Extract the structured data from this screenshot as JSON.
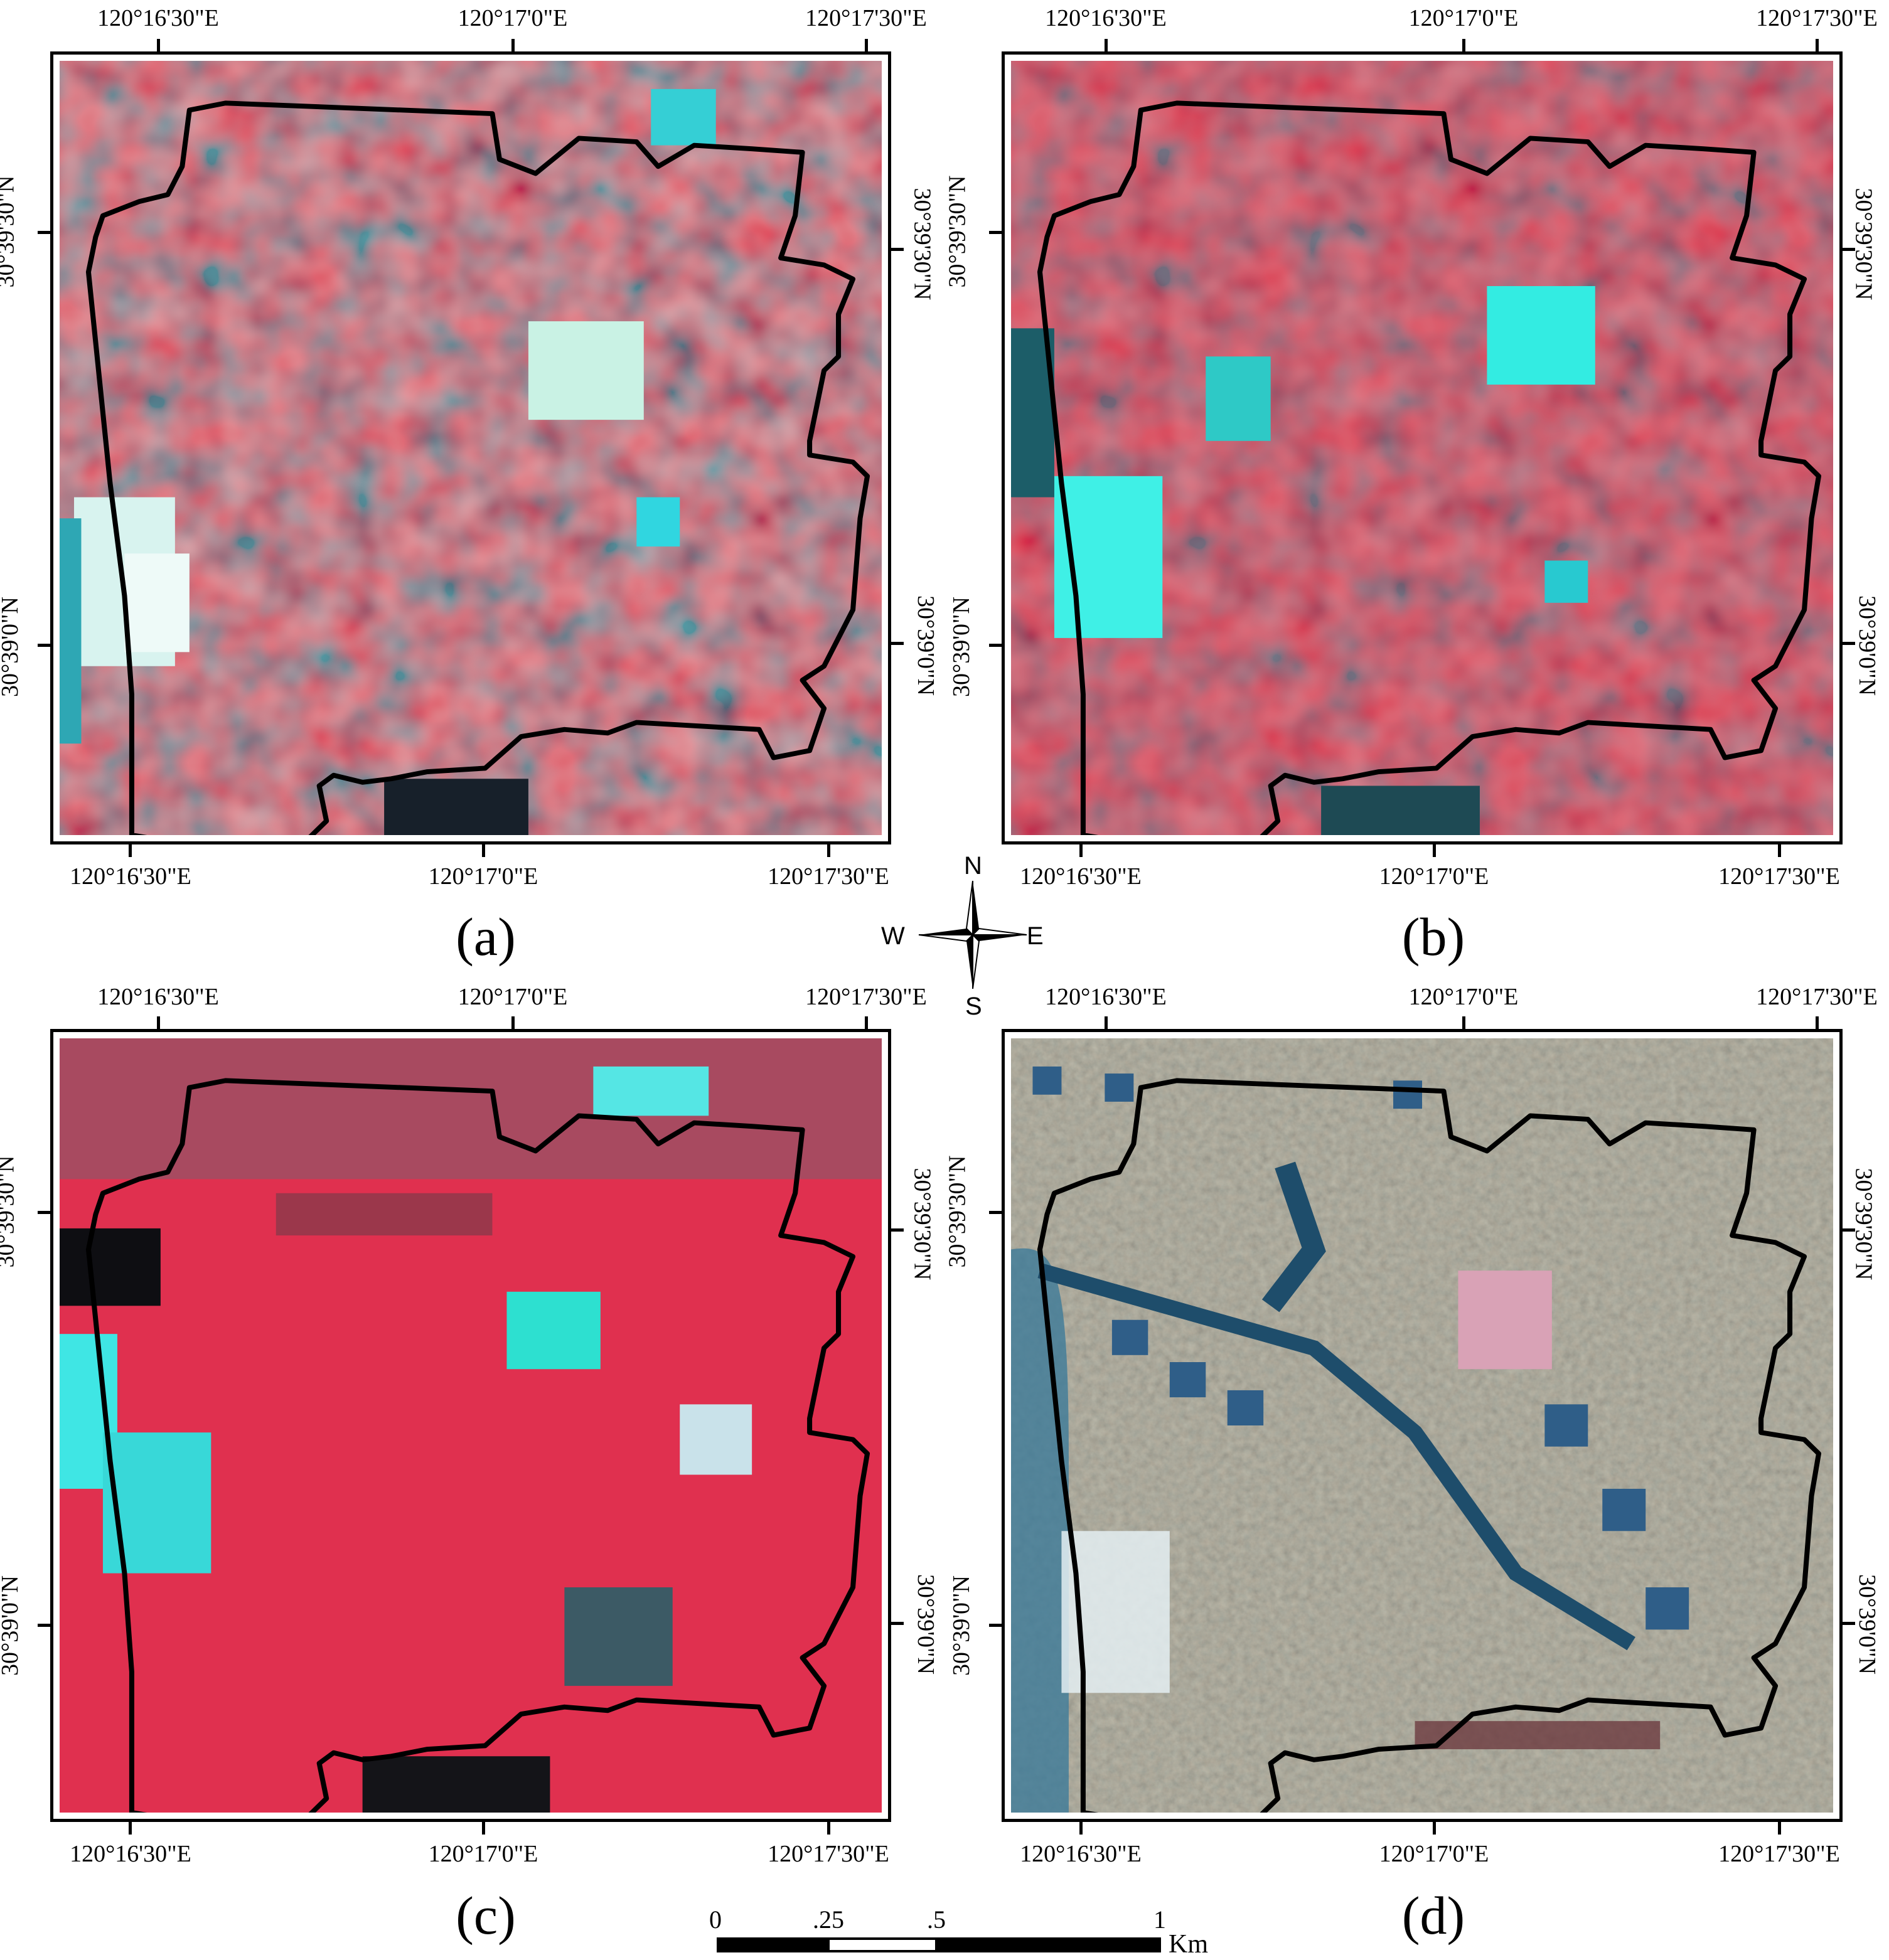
{
  "panels": [
    {
      "id": "a",
      "caption": "(a)",
      "description": "coarse-resolution false-colour image"
    },
    {
      "id": "b",
      "caption": "(b)",
      "description": "coarse-resolution false-colour image"
    },
    {
      "id": "c",
      "caption": "(c)",
      "description": "coarse-resolution false-colour image"
    },
    {
      "id": "d",
      "caption": "(d)",
      "description": "high-resolution false-colour image"
    }
  ],
  "graticule": {
    "lon_top": [
      "120°16'30\"E",
      "120°17'0\"E",
      "120°17'30\"E"
    ],
    "lon_bottom": [
      "120°16'30\"E",
      "120°17'0\"E",
      "120°17'30\"E"
    ],
    "lat": [
      "30°39'30\"N",
      "30°39'0\"N"
    ]
  },
  "compass": {
    "n": "N",
    "s": "S",
    "e": "E",
    "w": "W"
  },
  "scalebar": {
    "labels": [
      "0",
      ".25",
      ".5",
      "1"
    ],
    "unit": "Km"
  },
  "colors": {
    "frame": "#000000",
    "boundary": "#000000",
    "red_veg": "#d8304f",
    "cyan_water": "#30e0d8",
    "dark_teal": "#1f5c64"
  }
}
